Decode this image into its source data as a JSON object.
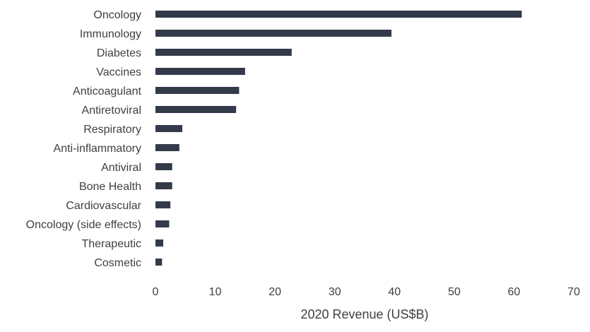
{
  "chart_data": {
    "type": "bar",
    "orientation": "horizontal",
    "categories": [
      "Oncology",
      "Immunology",
      "Diabetes",
      "Vaccines",
      "Anticoagulant",
      "Antiretoviral",
      "Respiratory",
      "Anti-inflammatory",
      "Antiviral",
      "Bone Health",
      "Cardiovascular",
      "Oncology (side effects)",
      "Therapeutic",
      "Cosmetic"
    ],
    "values": [
      61.3,
      39.5,
      22.8,
      15.0,
      14.0,
      13.5,
      4.5,
      4.0,
      2.8,
      2.8,
      2.5,
      2.3,
      1.3,
      1.1
    ],
    "xlabel": "2020 Revenue (US$B)",
    "ylabel": "",
    "title": "",
    "xlim": [
      0,
      70
    ],
    "xticks": [
      "0",
      "10",
      "20",
      "30",
      "40",
      "50",
      "60",
      "70"
    ],
    "grid": false,
    "legend": "none",
    "bar_color": "#333a4a"
  }
}
